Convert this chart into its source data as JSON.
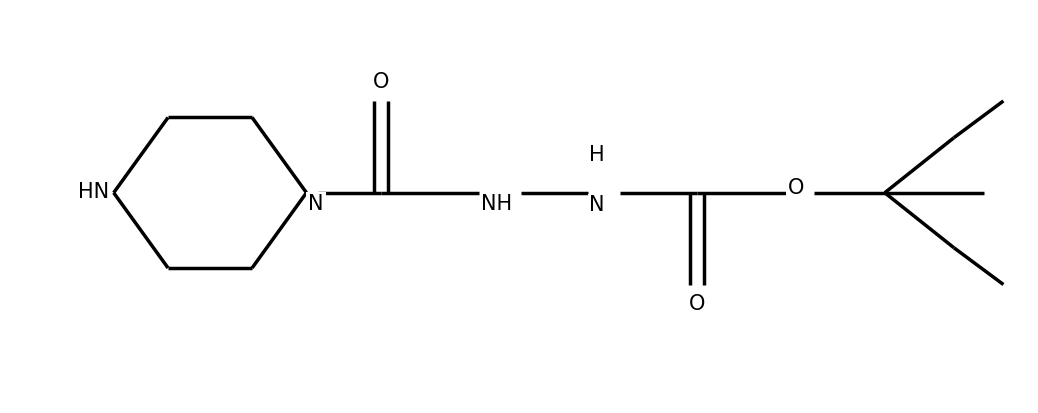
{
  "bg_color": "#ffffff",
  "line_color": "#000000",
  "line_width": 2.5,
  "font_size": 15,
  "fig_width": 10.38,
  "fig_height": 4.13,
  "dpi": 100,
  "xlim": [
    -0.3,
    10.2
  ],
  "ylim": [
    -0.2,
    4.3
  ]
}
